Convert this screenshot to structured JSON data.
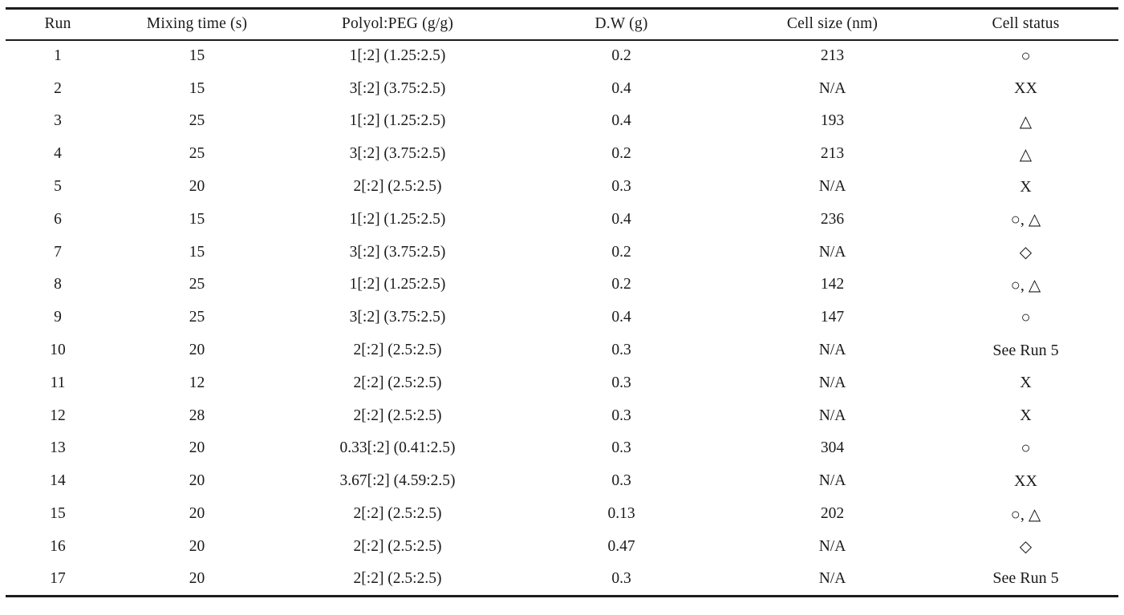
{
  "page": {
    "background_color": "#ffffff",
    "text_color": "#1a1a1a",
    "rule_color": "#1c1c1c"
  },
  "table": {
    "columns": [
      "Run",
      "Mixing time (s)",
      "Polyol:PEG (g/g)",
      "D.W (g)",
      "Cell size (nm)",
      "Cell status"
    ],
    "rows": [
      [
        "1",
        "15",
        "1[:2] (1.25:2.5)",
        "0.2",
        "213",
        "○"
      ],
      [
        "2",
        "15",
        "3[:2] (3.75:2.5)",
        "0.4",
        "N/A",
        "XX"
      ],
      [
        "3",
        "25",
        "1[:2] (1.25:2.5)",
        "0.4",
        "193",
        "△"
      ],
      [
        "4",
        "25",
        "3[:2] (3.75:2.5)",
        "0.2",
        "213",
        "△"
      ],
      [
        "5",
        "20",
        "2[:2] (2.5:2.5)",
        "0.3",
        "N/A",
        "X"
      ],
      [
        "6",
        "15",
        "1[:2] (1.25:2.5)",
        "0.4",
        "236",
        "○, △"
      ],
      [
        "7",
        "15",
        "3[:2] (3.75:2.5)",
        "0.2",
        "N/A",
        "◇"
      ],
      [
        "8",
        "25",
        "1[:2] (1.25:2.5)",
        "0.2",
        "142",
        "○, △"
      ],
      [
        "9",
        "25",
        "3[:2] (3.75:2.5)",
        "0.4",
        "147",
        "○"
      ],
      [
        "10",
        "20",
        "2[:2] (2.5:2.5)",
        "0.3",
        "N/A",
        "See Run 5"
      ],
      [
        "11",
        "12",
        "2[:2] (2.5:2.5)",
        "0.3",
        "N/A",
        "X"
      ],
      [
        "12",
        "28",
        "2[:2] (2.5:2.5)",
        "0.3",
        "N/A",
        "X"
      ],
      [
        "13",
        "20",
        "0.33[:2] (0.41:2.5)",
        "0.3",
        "304",
        "○"
      ],
      [
        "14",
        "20",
        "3.67[:2] (4.59:2.5)",
        "0.3",
        "N/A",
        "XX"
      ],
      [
        "15",
        "20",
        "2[:2] (2.5:2.5)",
        "0.13",
        "202",
        "○, △"
      ],
      [
        "16",
        "20",
        "2[:2] (2.5:2.5)",
        "0.47",
        "N/A",
        "◇"
      ],
      [
        "17",
        "20",
        "2[:2] (2.5:2.5)",
        "0.3",
        "N/A",
        "See Run 5"
      ]
    ]
  }
}
